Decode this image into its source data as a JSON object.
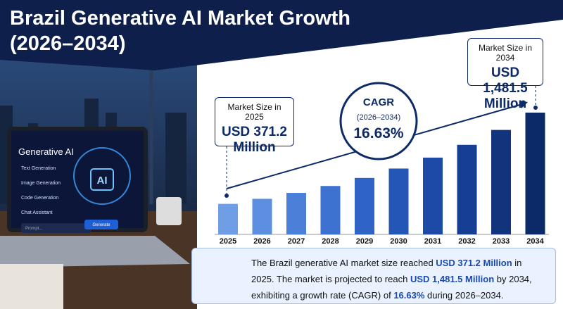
{
  "chart_data": {
    "type": "bar",
    "title": "Brazil Generative AI Market Growth",
    "subtitle": "(2026–2034)",
    "categories": [
      "2025",
      "2026",
      "2027",
      "2028",
      "2029",
      "2030",
      "2031",
      "2032",
      "2033",
      "2034"
    ],
    "values": [
      371.2,
      432.9,
      504.9,
      588.9,
      686.8,
      801.0,
      934.2,
      1089.6,
      1270.8,
      1481.5
    ],
    "colors": [
      "#6f9ee6",
      "#5d8fe0",
      "#4c80d8",
      "#3d72d0",
      "#2f63c6",
      "#2456b8",
      "#1c4aa6",
      "#163e92",
      "#12347d",
      "#0d2a68"
    ]
  },
  "callouts": [
    {
      "label": "Market Size in 2025",
      "value": "USD 371.2 Million"
    },
    {
      "label": "Market Size in 2034",
      "value": "USD 1,481.5 Million"
    }
  ],
  "cagr": {
    "label": "CAGR",
    "period": "(2026–2034)",
    "value": "16.63%"
  },
  "summary": [
    {
      "text": "The Brazil generative AI market size reached ",
      "bold": false
    },
    {
      "text": "USD 371.2 Million",
      "bold": true
    },
    {
      "text": " in 2025. The market is projected to reach ",
      "bold": false
    },
    {
      "text": "USD 1,481.5 Million",
      "bold": true
    },
    {
      "text": " by 2034, exhibiting a growth rate (CAGR) of ",
      "bold": false
    },
    {
      "text": "16.63%",
      "bold": true
    },
    {
      "text": " during 2026–2034.",
      "bold": false
    }
  ],
  "illustration": {
    "heading": "Generative AI",
    "badge": "AI",
    "menu": [
      "Text Generation",
      "Image Generation",
      "Code Generation",
      "Chat Assistant"
    ],
    "prompt": "Prompt...",
    "button": "Generate"
  }
}
